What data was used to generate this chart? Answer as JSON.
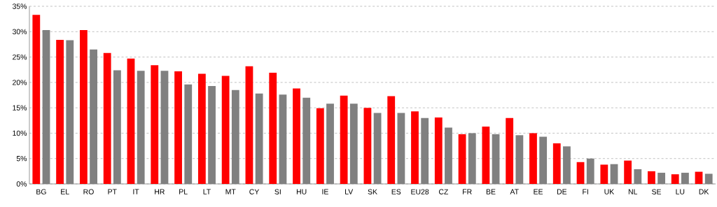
{
  "chart_data": {
    "type": "bar",
    "categories": [
      "BG",
      "EL",
      "RO",
      "PT",
      "IT",
      "HR",
      "PL",
      "LT",
      "MT",
      "CY",
      "SI",
      "HU",
      "IE",
      "LV",
      "SK",
      "ES",
      "EU28",
      "CZ",
      "FR",
      "BE",
      "AT",
      "EE",
      "DE",
      "FI",
      "UK",
      "NL",
      "SE",
      "LU",
      "DK"
    ],
    "series": [
      {
        "color": "#ff0000",
        "values": [
          33.3,
          28.4,
          30.3,
          25.8,
          24.7,
          23.4,
          22.2,
          21.7,
          21.3,
          23.2,
          21.9,
          18.8,
          14.9,
          17.4,
          15.0,
          17.3,
          14.3,
          13.1,
          9.8,
          11.3,
          13.0,
          10.0,
          8.0,
          4.3,
          3.8,
          4.6,
          2.5,
          1.9,
          2.4
        ]
      },
      {
        "color": "#808080",
        "values": [
          30.3,
          28.3,
          26.5,
          22.4,
          22.3,
          22.3,
          19.6,
          19.3,
          18.5,
          17.8,
          17.6,
          17.0,
          15.8,
          15.8,
          14.0,
          14.0,
          13.0,
          11.1,
          10.0,
          9.8,
          9.6,
          9.3,
          7.4,
          5.0,
          3.9,
          2.9,
          2.2,
          2.2,
          2.0
        ]
      }
    ],
    "ylim": [
      0,
      35
    ],
    "yticks": [
      {
        "value": 0,
        "label": "0%"
      },
      {
        "value": 5,
        "label": "5%"
      },
      {
        "value": 10,
        "label": "10%"
      },
      {
        "value": 15,
        "label": "15%"
      },
      {
        "value": 20,
        "label": "20%"
      },
      {
        "value": 25,
        "label": "25%"
      },
      {
        "value": 30,
        "label": "30%"
      },
      {
        "value": 35,
        "label": "35%"
      }
    ],
    "grid": "y"
  }
}
